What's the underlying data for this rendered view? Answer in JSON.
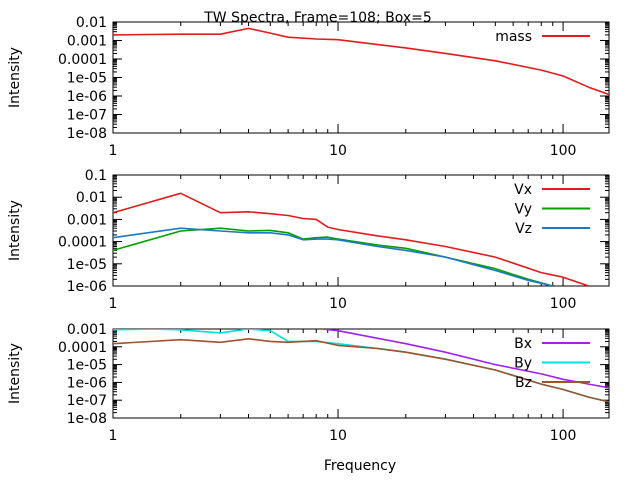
{
  "chart_data": [
    {
      "type": "line",
      "title": "TW Spectra, Frame=108; Box=5",
      "xlabel": "",
      "ylabel": "Intensity",
      "xscale": "log",
      "yscale": "log",
      "xlim": [
        1,
        160
      ],
      "ylim": [
        1e-08,
        0.01
      ],
      "xticks": [
        "1",
        "10",
        "100"
      ],
      "yticks": [
        "1e-08",
        "1e-07",
        "1e-06",
        "1e-05",
        "0.0001",
        "0.001",
        "0.01"
      ],
      "legend": "top-right",
      "series": [
        {
          "name": "mass",
          "color": "#e41a1c",
          "x": [
            1,
            2,
            3,
            4,
            5,
            6,
            8,
            10,
            15,
            20,
            30,
            50,
            80,
            100,
            130,
            160
          ],
          "y": [
            0.002,
            0.0022,
            0.0022,
            0.0045,
            0.0025,
            0.0015,
            0.0012,
            0.0011,
            0.0006,
            0.0004,
            0.0002,
            8e-05,
            2.5e-05,
            1.2e-05,
            3e-06,
            1.2e-06
          ]
        }
      ]
    },
    {
      "type": "line",
      "xlabel": "",
      "ylabel": "Intensity",
      "xscale": "log",
      "yscale": "log",
      "xlim": [
        1,
        160
      ],
      "ylim": [
        1e-06,
        0.1
      ],
      "xticks": [
        "1",
        "10",
        "100"
      ],
      "yticks": [
        "1e-06",
        "1e-05",
        "0.0001",
        "0.001",
        "0.01",
        "0.1"
      ],
      "legend": "top-right",
      "series": [
        {
          "name": "Vx",
          "color": "#e41a1c",
          "x": [
            1,
            2,
            3,
            4,
            5,
            6,
            7,
            8,
            9,
            10,
            15,
            20,
            30,
            50,
            80,
            100,
            130
          ],
          "y": [
            0.002,
            0.015,
            0.002,
            0.0022,
            0.0018,
            0.0015,
            0.0011,
            0.001,
            0.00045,
            0.00035,
            0.00018,
            0.00012,
            6e-05,
            2e-05,
            4e-06,
            2.5e-06,
            1e-06
          ]
        },
        {
          "name": "Vy",
          "color": "#00a000",
          "x": [
            1,
            2,
            3,
            4,
            5,
            6,
            7,
            8,
            9,
            10,
            15,
            20,
            30,
            50,
            70,
            90
          ],
          "y": [
            4e-05,
            0.0003,
            0.0004,
            0.0003,
            0.00032,
            0.00025,
            0.00013,
            0.00015,
            0.00016,
            0.00013,
            7e-05,
            5e-05,
            2e-05,
            6e-06,
            2e-06,
            1e-06
          ]
        },
        {
          "name": "Vz",
          "color": "#1e78c8",
          "x": [
            1,
            2,
            3,
            4,
            5,
            6,
            7,
            8,
            9,
            10,
            15,
            20,
            30,
            50,
            70,
            90
          ],
          "y": [
            0.00015,
            0.0004,
            0.0003,
            0.00025,
            0.00025,
            0.0002,
            0.00012,
            0.00013,
            0.00013,
            0.00012,
            6e-05,
            4e-05,
            2e-05,
            5e-06,
            1.8e-06,
            1e-06
          ]
        }
      ]
    },
    {
      "type": "line",
      "xlabel": "Frequency",
      "ylabel": "Intensity",
      "xscale": "log",
      "yscale": "log",
      "xlim": [
        1,
        160
      ],
      "ylim": [
        1e-08,
        0.001
      ],
      "xticks": [
        "1",
        "10",
        "100"
      ],
      "yticks": [
        "1e-08",
        "1e-07",
        "1e-06",
        "1e-05",
        "0.0001",
        "0.001"
      ],
      "legend": "top-right",
      "series": [
        {
          "name": "Bx",
          "color": "#a020f0",
          "x": [
            8.5,
            10,
            15,
            20,
            30,
            50,
            80,
            100,
            130,
            160
          ],
          "y": [
            0.001,
            0.0008,
            0.0003,
            0.00015,
            5e-05,
            1e-05,
            3e-06,
            1.5e-06,
            8e-07,
            5e-07
          ]
        },
        {
          "name": "By",
          "color": "#00e0e0",
          "x": [
            1,
            1.5,
            2,
            3,
            4,
            5,
            6,
            8,
            10,
            15,
            20,
            30,
            50,
            80,
            100,
            130,
            160
          ],
          "y": [
            0.0009,
            0.001,
            0.0009,
            0.0006,
            0.001,
            0.0008,
            0.0002,
            0.0002,
            0.00015,
            8e-05,
            5e-05,
            2e-05,
            5e-06,
            8e-07,
            4e-07,
            1.5e-07,
            8e-08
          ]
        },
        {
          "name": "Bz",
          "color": "#a0522d",
          "x": [
            1,
            2,
            3,
            4,
            5,
            6,
            8,
            10,
            15,
            20,
            30,
            50,
            80,
            100,
            130,
            160
          ],
          "y": [
            0.00015,
            0.00025,
            0.00018,
            0.00028,
            0.0002,
            0.00018,
            0.00022,
            0.00012,
            8e-05,
            5e-05,
            2e-05,
            5e-06,
            8e-07,
            4e-07,
            1.5e-07,
            8e-08
          ]
        }
      ]
    }
  ]
}
